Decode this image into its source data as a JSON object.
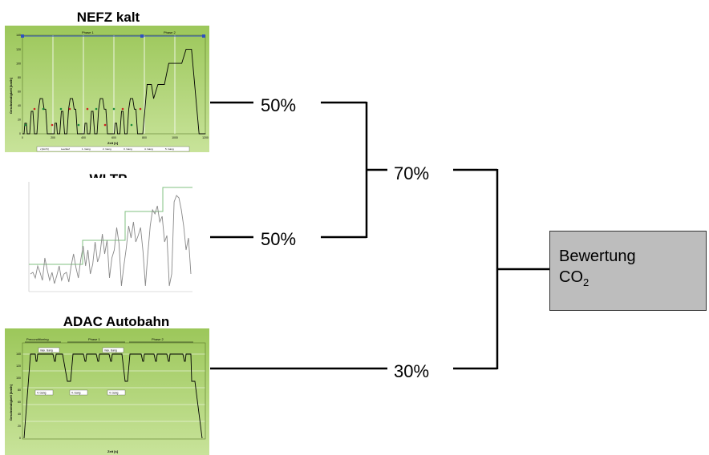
{
  "cycles": {
    "nefz": {
      "title": "NEFZ kalt",
      "phase1": "Phase 1",
      "phase2": "Phase 2",
      "ylabel": "Geschwindigkeit [km/h]",
      "xlabel": "Zeit [s]",
      "yticks": [
        "0",
        "20",
        "40",
        "60",
        "80",
        "100",
        "120",
        "140"
      ],
      "xticks": [
        "0",
        "200",
        "400",
        "600",
        "800",
        "1000",
        "1200"
      ],
      "legend": [
        "v [km/h]",
        "Leerlauf",
        "1. Gang",
        "2. Gang",
        "3. Gang",
        "4. Gang",
        "5. Gang"
      ]
    },
    "wltp": {
      "title": "WLTP"
    },
    "adac": {
      "title": "ADAC Autobahn",
      "phase0": "Preconditioning",
      "phase1": "Phase 1",
      "phase2": "Phase 2",
      "ylabel": "Geschwindigkeit [km/h]",
      "xlabel": "Zeit [s]",
      "label_max": "max. Gang",
      "label_gear": "4. Gang",
      "yticks": [
        "0",
        "20",
        "40",
        "60",
        "80",
        "100",
        "120",
        "140"
      ]
    }
  },
  "weights": {
    "nefz": "50%",
    "wltp": "50%",
    "combined": "70%",
    "adac": "30%"
  },
  "result": {
    "line1": "Bewertung",
    "line2_main": "CO",
    "line2_sub": "2"
  },
  "colors": {
    "chart_bg": "#a8d070",
    "result_box": "#bdbdbd",
    "wltp_line": "#888888",
    "wltp_speed_limit": "#80c080"
  }
}
